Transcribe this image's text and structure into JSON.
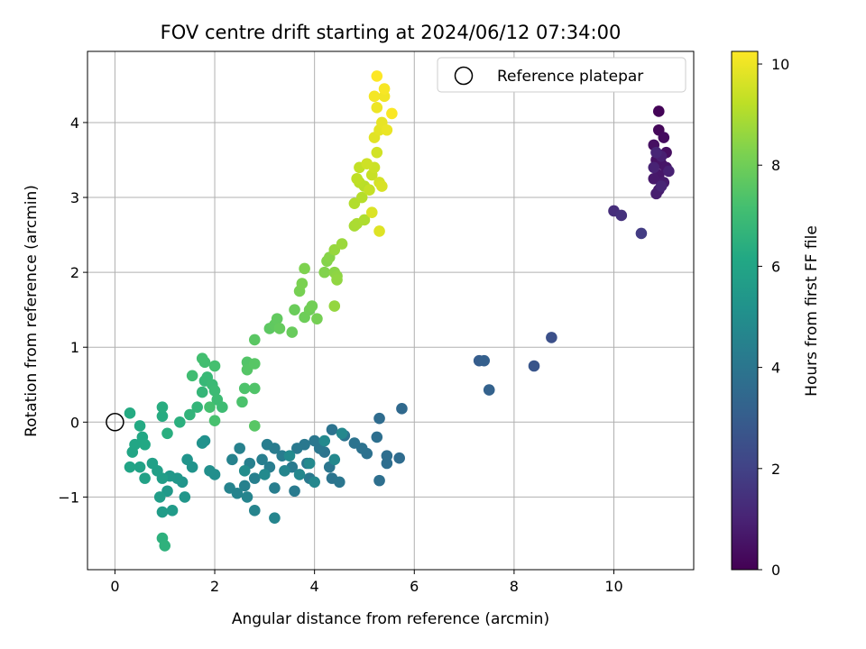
{
  "chart_data": {
    "type": "scatter",
    "title": "FOV centre drift starting at 2024/06/12 07:34:00",
    "xlabel": "Angular distance from reference (arcmin)",
    "ylabel": "Rotation from reference (arcmin)",
    "xlim": [
      -0.55,
      11.6
    ],
    "ylim": [
      -1.97,
      4.95
    ],
    "xticks": [
      0,
      2,
      4,
      6,
      8,
      10
    ],
    "yticks": [
      -1,
      0,
      1,
      2,
      3,
      4
    ],
    "grid": true,
    "legend": {
      "position": "top-right",
      "entries": [
        "Reference platepar"
      ]
    },
    "reference_point": {
      "x": 0,
      "y": 0,
      "label": "Reference platepar"
    },
    "colorbar": {
      "label": "Hours from first FF file",
      "range": [
        0,
        10.25
      ],
      "ticks": [
        0,
        2,
        4,
        6,
        8,
        10
      ],
      "colormap": "viridis"
    },
    "points": [
      [
        10.9,
        4.15,
        0.1
      ],
      [
        10.9,
        3.9,
        0.2
      ],
      [
        11.0,
        3.8,
        0.3
      ],
      [
        11.05,
        3.6,
        0.4
      ],
      [
        10.8,
        3.7,
        0.45
      ],
      [
        10.85,
        3.5,
        0.5
      ],
      [
        10.95,
        3.45,
        0.55
      ],
      [
        11.05,
        3.4,
        0.6
      ],
      [
        10.9,
        3.3,
        0.65
      ],
      [
        10.8,
        3.25,
        0.7
      ],
      [
        11.0,
        3.2,
        0.75
      ],
      [
        10.9,
        3.1,
        0.8
      ],
      [
        10.85,
        3.05,
        0.85
      ],
      [
        10.95,
        3.55,
        0.9
      ],
      [
        11.1,
        3.35,
        0.95
      ],
      [
        10.8,
        3.4,
        1.0
      ],
      [
        10.95,
        3.15,
        1.05
      ],
      [
        10.85,
        3.6,
        1.1
      ],
      [
        10.0,
        2.82,
        1.35
      ],
      [
        10.15,
        2.76,
        1.45
      ],
      [
        10.55,
        2.52,
        1.8
      ],
      [
        8.75,
        1.13,
        2.5
      ],
      [
        8.4,
        0.75,
        2.7
      ],
      [
        7.3,
        0.82,
        3.0
      ],
      [
        7.4,
        0.82,
        3.1
      ],
      [
        7.5,
        0.43,
        3.2
      ],
      [
        5.75,
        0.18,
        3.5
      ],
      [
        5.3,
        0.05,
        3.6
      ],
      [
        5.7,
        -0.48,
        3.6
      ],
      [
        5.45,
        -0.45,
        3.7
      ],
      [
        5.45,
        -0.55,
        3.7
      ],
      [
        5.3,
        -0.78,
        3.75
      ],
      [
        5.25,
        -0.2,
        3.75
      ],
      [
        5.05,
        -0.42,
        3.8
      ],
      [
        4.95,
        -0.35,
        3.85
      ],
      [
        4.8,
        -0.28,
        3.9
      ],
      [
        4.6,
        -0.18,
        3.9
      ],
      [
        4.35,
        -0.1,
        3.9
      ],
      [
        4.2,
        -0.4,
        3.95
      ],
      [
        4.35,
        -0.75,
        3.95
      ],
      [
        4.5,
        -0.8,
        4.0
      ],
      [
        4.3,
        -0.6,
        4.0
      ],
      [
        4.1,
        -0.35,
        4.05
      ],
      [
        4.0,
        -0.25,
        4.05
      ],
      [
        3.8,
        -0.3,
        4.1
      ],
      [
        3.85,
        -0.55,
        4.1
      ],
      [
        3.9,
        -0.75,
        4.15
      ],
      [
        3.65,
        -0.35,
        4.15
      ],
      [
        3.55,
        -0.6,
        4.2
      ],
      [
        3.6,
        -0.92,
        4.2
      ],
      [
        3.35,
        -0.45,
        4.25
      ],
      [
        3.2,
        -0.35,
        4.25
      ],
      [
        3.05,
        -0.3,
        4.3
      ],
      [
        3.1,
        -0.6,
        4.3
      ],
      [
        3.2,
        -0.88,
        4.35
      ],
      [
        2.95,
        -0.5,
        4.35
      ],
      [
        2.8,
        -0.75,
        4.4
      ],
      [
        2.7,
        -0.55,
        4.4
      ],
      [
        2.6,
        -0.85,
        4.45
      ],
      [
        2.5,
        -0.35,
        4.45
      ],
      [
        2.35,
        -0.5,
        4.5
      ],
      [
        2.3,
        -0.88,
        4.55
      ],
      [
        2.45,
        -0.95,
        4.55
      ],
      [
        2.65,
        -1.0,
        4.6
      ],
      [
        2.8,
        -1.18,
        4.6
      ],
      [
        3.2,
        -1.28,
        4.65
      ],
      [
        3.4,
        -0.65,
        4.65
      ],
      [
        3.7,
        -0.7,
        4.7
      ],
      [
        4.0,
        -0.8,
        4.7
      ],
      [
        4.4,
        -0.5,
        4.75
      ],
      [
        4.55,
        -0.15,
        4.75
      ],
      [
        4.2,
        -0.25,
        4.8
      ],
      [
        3.9,
        -0.55,
        4.8
      ],
      [
        3.5,
        -0.45,
        4.85
      ],
      [
        3.0,
        -0.7,
        4.85
      ],
      [
        2.6,
        -0.65,
        4.9
      ],
      [
        2.0,
        -0.7,
        5.0
      ],
      [
        1.9,
        -0.65,
        5.05
      ],
      [
        1.8,
        -0.25,
        5.1
      ],
      [
        1.75,
        -0.28,
        5.15
      ],
      [
        1.55,
        -0.6,
        5.2
      ],
      [
        1.45,
        -0.5,
        5.25
      ],
      [
        1.35,
        -0.8,
        5.3
      ],
      [
        1.4,
        -1.0,
        5.35
      ],
      [
        1.25,
        -0.75,
        5.4
      ],
      [
        1.1,
        -0.72,
        5.45
      ],
      [
        1.05,
        -0.92,
        5.5
      ],
      [
        1.15,
        -1.18,
        5.55
      ],
      [
        0.95,
        -1.2,
        5.6
      ],
      [
        0.9,
        -1.0,
        5.65
      ],
      [
        0.95,
        -0.75,
        5.7
      ],
      [
        0.85,
        -0.65,
        5.75
      ],
      [
        0.75,
        -0.55,
        5.8
      ],
      [
        0.6,
        -0.75,
        5.85
      ],
      [
        0.5,
        -0.6,
        5.9
      ],
      [
        0.3,
        -0.6,
        5.95
      ],
      [
        0.35,
        -0.4,
        6.0
      ],
      [
        0.4,
        -0.3,
        6.05
      ],
      [
        0.55,
        -0.2,
        6.1
      ],
      [
        0.6,
        -0.3,
        6.15
      ],
      [
        0.5,
        -0.05,
        6.2
      ],
      [
        0.3,
        0.12,
        6.25
      ],
      [
        0.95,
        0.08,
        6.3
      ],
      [
        0.95,
        0.2,
        6.35
      ],
      [
        1.05,
        -0.15,
        6.4
      ],
      [
        1.3,
        0.0,
        6.45
      ],
      [
        0.95,
        -1.55,
        6.5
      ],
      [
        1.0,
        -1.65,
        6.55
      ],
      [
        1.5,
        0.1,
        6.65
      ],
      [
        1.65,
        0.2,
        6.7
      ],
      [
        1.75,
        0.4,
        6.75
      ],
      [
        1.8,
        0.55,
        6.8
      ],
      [
        1.85,
        0.6,
        6.85
      ],
      [
        1.95,
        0.5,
        6.9
      ],
      [
        2.0,
        0.42,
        6.95
      ],
      [
        2.05,
        0.3,
        7.0
      ],
      [
        2.15,
        0.2,
        7.0
      ],
      [
        1.55,
        0.62,
        7.05
      ],
      [
        1.8,
        0.8,
        7.1
      ],
      [
        1.75,
        0.85,
        7.15
      ],
      [
        2.0,
        0.75,
        7.2
      ],
      [
        1.9,
        0.2,
        7.2
      ],
      [
        2.0,
        0.02,
        7.25
      ],
      [
        2.55,
        0.27,
        7.3
      ],
      [
        2.6,
        0.45,
        7.35
      ],
      [
        2.8,
        0.45,
        7.4
      ],
      [
        2.65,
        0.8,
        7.45
      ],
      [
        2.65,
        0.7,
        7.5
      ],
      [
        2.8,
        0.78,
        7.55
      ],
      [
        2.8,
        -0.05,
        7.55
      ],
      [
        2.8,
        1.1,
        7.6
      ],
      [
        3.1,
        1.25,
        7.65
      ],
      [
        3.2,
        1.3,
        7.7
      ],
      [
        3.25,
        1.38,
        7.75
      ],
      [
        3.3,
        1.25,
        7.8
      ],
      [
        3.55,
        1.2,
        7.85
      ],
      [
        3.6,
        1.5,
        7.9
      ],
      [
        3.8,
        1.4,
        7.95
      ],
      [
        3.9,
        1.5,
        8.0
      ],
      [
        3.95,
        1.55,
        8.05
      ],
      [
        4.05,
        1.38,
        8.1
      ],
      [
        3.7,
        1.75,
        8.15
      ],
      [
        3.75,
        1.85,
        8.2
      ],
      [
        3.8,
        2.05,
        8.25
      ],
      [
        4.2,
        2.0,
        8.3
      ],
      [
        4.25,
        2.15,
        8.35
      ],
      [
        4.3,
        2.2,
        8.4
      ],
      [
        4.4,
        2.0,
        8.45
      ],
      [
        4.45,
        1.95,
        8.5
      ],
      [
        4.45,
        1.9,
        8.55
      ],
      [
        4.4,
        1.55,
        8.6
      ],
      [
        4.4,
        2.3,
        8.65
      ],
      [
        4.55,
        2.38,
        8.7
      ],
      [
        4.8,
        2.62,
        8.9
      ],
      [
        4.85,
        2.65,
        8.95
      ],
      [
        5.0,
        2.7,
        9.0
      ],
      [
        4.8,
        2.92,
        9.05
      ],
      [
        4.95,
        3.0,
        9.1
      ],
      [
        5.0,
        3.15,
        9.15
      ],
      [
        4.9,
        3.2,
        9.2
      ],
      [
        4.85,
        3.25,
        9.25
      ],
      [
        4.9,
        3.4,
        9.3
      ],
      [
        5.1,
        3.1,
        9.35
      ],
      [
        5.15,
        3.3,
        9.4
      ],
      [
        5.2,
        3.4,
        9.45
      ],
      [
        5.05,
        3.45,
        9.5
      ],
      [
        5.25,
        3.6,
        9.55
      ],
      [
        5.3,
        3.2,
        9.6
      ],
      [
        5.35,
        3.15,
        9.65
      ],
      [
        5.15,
        2.8,
        9.7
      ],
      [
        5.3,
        2.55,
        9.75
      ],
      [
        5.2,
        3.8,
        9.8
      ],
      [
        5.3,
        3.9,
        9.85
      ],
      [
        5.35,
        4.0,
        9.9
      ],
      [
        5.45,
        3.9,
        9.95
      ],
      [
        5.25,
        4.2,
        10.0
      ],
      [
        5.4,
        4.35,
        10.05
      ],
      [
        5.2,
        4.35,
        10.1
      ],
      [
        5.4,
        4.45,
        10.15
      ],
      [
        5.55,
        4.12,
        10.2
      ],
      [
        5.25,
        4.62,
        10.25
      ]
    ]
  }
}
